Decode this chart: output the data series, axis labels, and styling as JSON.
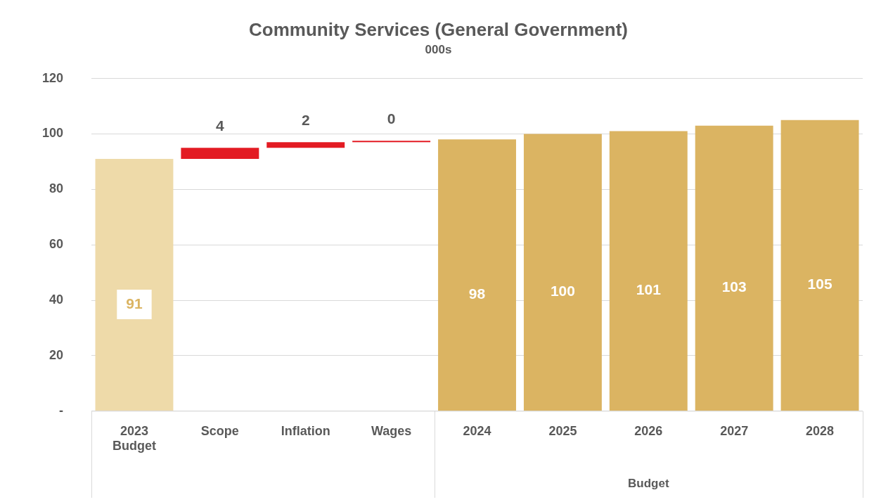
{
  "chart_data": {
    "type": "bar",
    "title": "Community Services (General Government)",
    "subtitle": "000s",
    "categories": [
      "2023 Budget",
      "Scope",
      "Inflation",
      "Wages",
      "2024",
      "2025",
      "2026",
      "2027",
      "2028"
    ],
    "values": [
      91,
      4,
      2,
      0,
      98,
      100,
      101,
      103,
      105
    ],
    "base": [
      0,
      91,
      95,
      97,
      0,
      0,
      0,
      0,
      0
    ],
    "colors": [
      "#eedaa9",
      "#e31b23",
      "#e31b23",
      "#e31b23",
      "#dbb462",
      "#dbb462",
      "#dbb462",
      "#dbb462",
      "#dbb462"
    ],
    "ylim": [
      0,
      120
    ],
    "yticks": [
      {
        "value": 0,
        "label": "-"
      },
      20,
      40,
      60,
      80,
      100,
      120
    ],
    "grid": "y",
    "legend": false,
    "data_labels": true,
    "annotations": [
      "Budget"
    ]
  }
}
